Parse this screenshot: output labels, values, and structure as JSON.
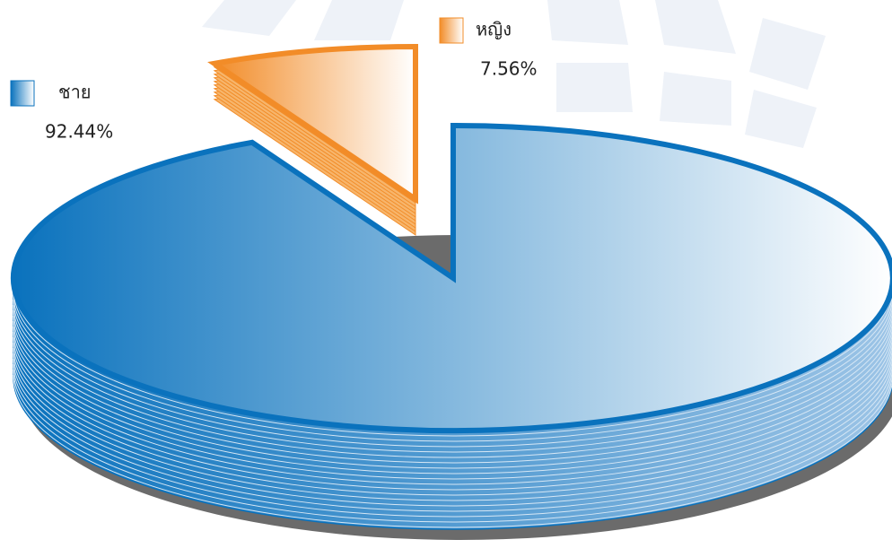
{
  "chart_data": {
    "type": "pie",
    "categories": [
      "ชาย",
      "หญิง"
    ],
    "values": [
      92.44,
      7.56
    ],
    "value_labels": [
      "92.44%",
      "7.56%"
    ],
    "colors": [
      "#0a72bd",
      "#f28c28"
    ]
  }
}
